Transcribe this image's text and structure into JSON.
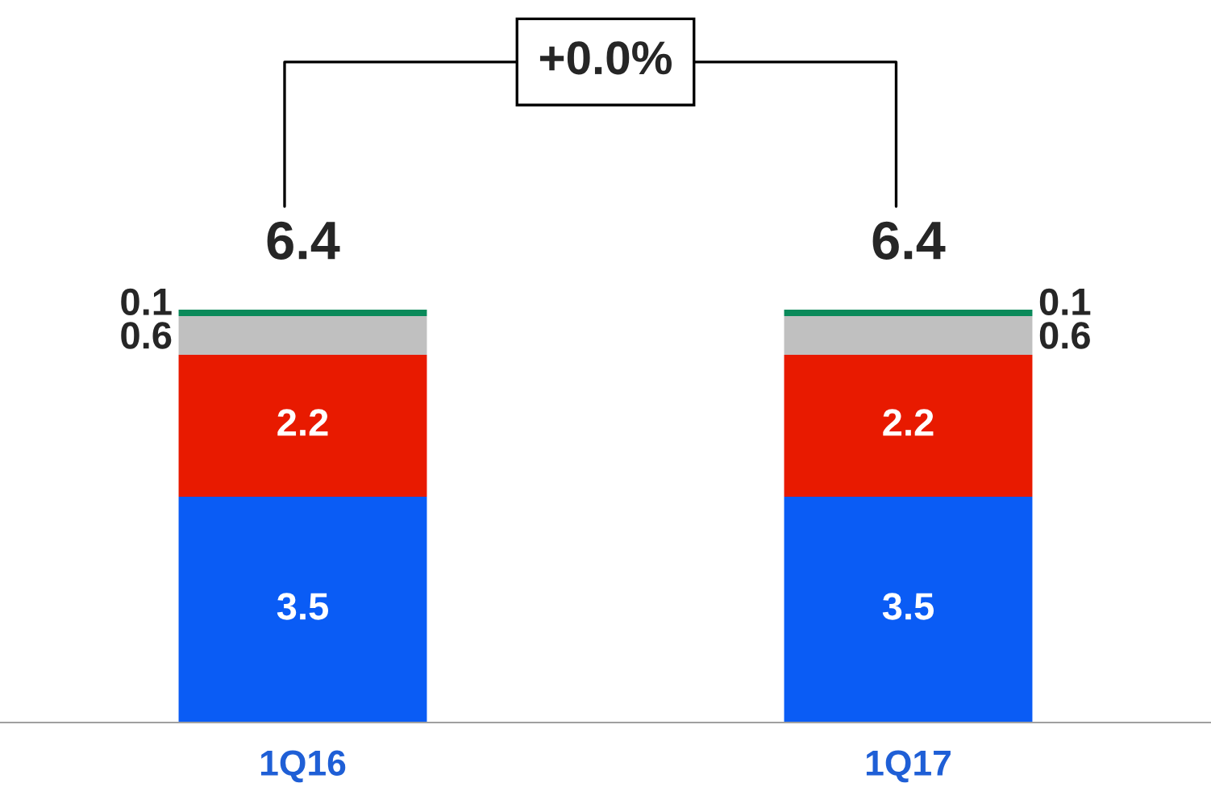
{
  "chart_data": {
    "type": "bar",
    "stacked": true,
    "categories": [
      "1Q16",
      "1Q17"
    ],
    "series": [
      {
        "color": "#0a5cf5",
        "values": [
          3.5,
          3.5
        ]
      },
      {
        "color": "#e81a00",
        "values": [
          2.2,
          2.2
        ]
      },
      {
        "color": "#c0c0c0",
        "values": [
          0.6,
          0.6
        ]
      },
      {
        "color": "#0a8a5a",
        "values": [
          0.1,
          0.1
        ]
      }
    ],
    "data_labels": true,
    "totals": [
      "6.4",
      "6.4"
    ],
    "annotations": [
      "+0.0%"
    ],
    "legend": false,
    "grid": false
  }
}
